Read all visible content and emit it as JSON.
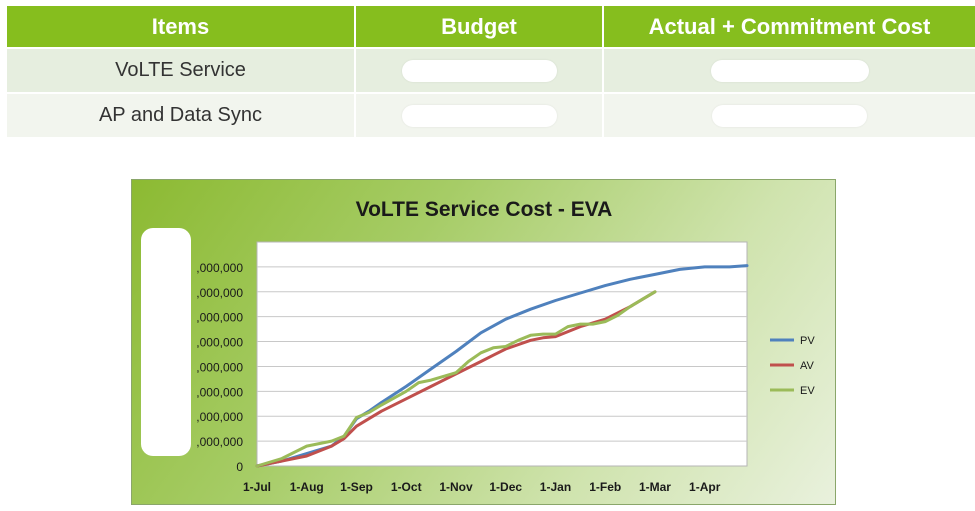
{
  "table": {
    "headers": [
      "Items",
      "Budget",
      "Actual + Commitment Cost"
    ],
    "rows": [
      {
        "item": "VoLTE Service"
      },
      {
        "item": "AP and Data Sync"
      }
    ],
    "colors": {
      "header_bg": "#86be1e",
      "header_text": "#ffffff",
      "row_odd": "#e6eedf",
      "row_even": "#f2f5ee"
    }
  },
  "chart_data": {
    "type": "line",
    "title": "VoLTE Service Cost - EVA",
    "xlabel": "",
    "ylabel": "",
    "categories": [
      "1-Jul",
      "1-Aug",
      "1-Sep",
      "1-Oct",
      "1-Nov",
      "1-Dec",
      "1-Jan",
      "1-Feb",
      "1-Mar",
      "1-Apr"
    ],
    "x_range": [
      0,
      9.85
    ],
    "y_ticks": [
      ",000,000",
      ",000,000",
      ",000,000",
      ",000,000",
      ",000,000",
      ",000,000",
      ",000,000",
      ",000,000",
      "0"
    ],
    "y_tick_values": [
      8,
      7,
      6,
      5,
      4,
      3,
      2,
      1,
      0
    ],
    "ylim": [
      0,
      9
    ],
    "grid": true,
    "legend_position": "right",
    "series": [
      {
        "name": "PV",
        "color": "#4f81bd",
        "x": [
          0,
          0.5,
          1,
          1.5,
          1.75,
          2,
          2.25,
          2.5,
          3,
          3.5,
          4,
          4.5,
          5,
          5.5,
          6,
          6.5,
          7,
          7.5,
          8,
          8.5,
          9,
          9.5,
          9.85
        ],
        "y": [
          0,
          0.2,
          0.5,
          0.8,
          1.2,
          1.9,
          2.2,
          2.55,
          3.2,
          3.9,
          4.6,
          5.35,
          5.9,
          6.3,
          6.65,
          6.95,
          7.25,
          7.5,
          7.7,
          7.9,
          8.0,
          8.0,
          8.05
        ]
      },
      {
        "name": "AV",
        "color": "#c0504d",
        "x": [
          0,
          0.5,
          1,
          1.5,
          1.75,
          2,
          2.25,
          2.5,
          3,
          3.5,
          4,
          4.5,
          4.75,
          5,
          5.5,
          5.75,
          6,
          6.5,
          6.75,
          7,
          7.5,
          8
        ],
        "y": [
          0,
          0.2,
          0.4,
          0.8,
          1.1,
          1.6,
          1.9,
          2.2,
          2.7,
          3.2,
          3.7,
          4.2,
          4.45,
          4.7,
          5.05,
          5.15,
          5.2,
          5.6,
          5.75,
          5.9,
          6.4,
          7.0
        ]
      },
      {
        "name": "EV",
        "color": "#9bbb59",
        "x": [
          0,
          0.5,
          1,
          1.5,
          1.75,
          2,
          2.25,
          2.5,
          3,
          3.25,
          3.5,
          4,
          4.25,
          4.5,
          4.75,
          5,
          5.25,
          5.5,
          5.75,
          6,
          6.25,
          6.5,
          6.75,
          7,
          7.25,
          7.5,
          7.75,
          8
        ],
        "y": [
          0,
          0.3,
          0.8,
          1.0,
          1.2,
          1.95,
          2.15,
          2.45,
          3.0,
          3.35,
          3.45,
          3.75,
          4.2,
          4.55,
          4.75,
          4.8,
          5.05,
          5.25,
          5.3,
          5.3,
          5.6,
          5.7,
          5.7,
          5.8,
          6.05,
          6.4,
          6.7,
          7.0
        ]
      }
    ]
  }
}
